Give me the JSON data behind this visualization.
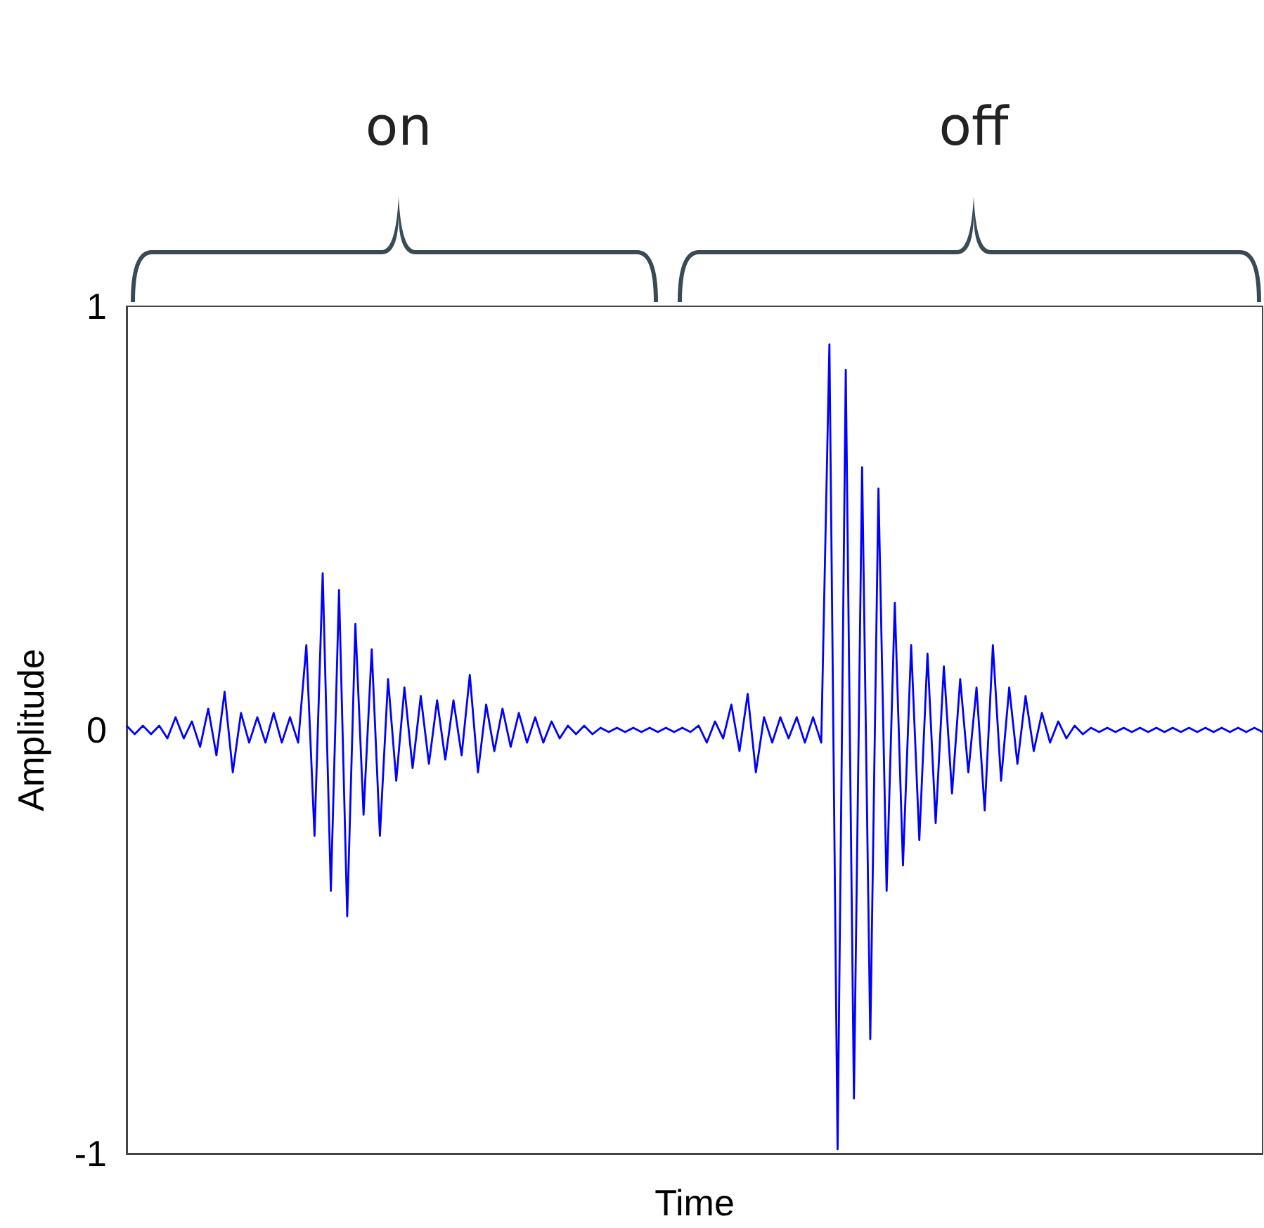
{
  "chart_data": {
    "type": "line",
    "xlabel": "Time",
    "ylabel": "Amplitude",
    "annotations": [
      "on",
      "off"
    ],
    "categories": [
      null,
      null,
      null,
      null,
      null,
      null,
      null,
      null,
      null,
      null,
      null,
      null,
      null,
      null,
      null,
      null,
      null,
      null,
      null,
      null,
      null,
      null,
      null,
      null,
      null,
      null,
      null,
      null,
      null,
      null,
      null,
      null,
      null,
      null,
      null,
      null,
      null,
      null,
      null,
      null,
      null,
      null,
      null,
      null,
      null,
      null,
      null,
      null,
      null,
      null,
      null,
      null,
      null,
      null,
      null,
      null,
      null,
      null,
      null,
      null,
      null,
      null,
      null,
      null,
      null,
      null,
      null,
      null,
      null,
      null,
      null,
      null,
      null,
      null,
      null,
      null,
      null,
      null,
      null,
      null,
      null,
      null,
      null,
      null,
      null,
      null,
      null,
      null,
      null,
      null,
      null,
      null,
      null,
      null,
      null,
      null,
      null,
      null,
      null,
      null,
      null,
      null,
      null,
      null,
      null,
      null,
      null,
      null,
      null,
      null,
      null,
      null,
      null,
      null,
      null,
      null,
      null,
      null,
      null,
      null,
      null,
      null,
      null,
      null,
      null,
      null,
      null,
      null,
      null,
      null,
      null,
      null,
      null,
      null,
      null,
      null,
      null,
      null,
      null,
      null
    ],
    "series": [
      {
        "color": "#0000ff",
        "values": [
          0.01,
          -0.01,
          0.01,
          -0.01,
          0.01,
          -0.02,
          0.03,
          -0.02,
          0.02,
          -0.04,
          0.05,
          -0.06,
          0.09,
          -0.1,
          0.04,
          -0.03,
          0.03,
          -0.03,
          0.04,
          -0.03,
          0.03,
          -0.03,
          0.2,
          -0.25,
          0.37,
          -0.38,
          0.33,
          -0.44,
          0.25,
          -0.2,
          0.19,
          -0.25,
          0.12,
          -0.12,
          0.1,
          -0.09,
          0.08,
          -0.08,
          0.07,
          -0.07,
          0.07,
          -0.06,
          0.13,
          -0.1,
          0.06,
          -0.05,
          0.05,
          -0.04,
          0.04,
          -0.03,
          0.03,
          -0.03,
          0.02,
          -0.02,
          0.01,
          -0.01,
          0.01,
          -0.01,
          0.005,
          -0.005,
          0.005,
          -0.005,
          0.005,
          -0.005,
          0.005,
          -0.005,
          0.005,
          -0.005,
          0.005,
          -0.005,
          0.01,
          -0.03,
          0.02,
          -0.02,
          0.06,
          -0.05,
          0.085,
          -0.1,
          0.03,
          -0.03,
          0.03,
          -0.02,
          0.03,
          -0.03,
          0.03,
          -0.03,
          0.91,
          -0.99,
          0.85,
          -0.87,
          0.62,
          -0.73,
          0.57,
          -0.38,
          0.3,
          -0.32,
          0.2,
          -0.26,
          0.18,
          -0.22,
          0.15,
          -0.15,
          0.12,
          -0.1,
          0.1,
          -0.19,
          0.2,
          -0.12,
          0.1,
          -0.08,
          0.08,
          -0.05,
          0.04,
          -0.03,
          0.02,
          -0.02,
          0.01,
          -0.01,
          0.005,
          -0.005,
          0.005,
          -0.005,
          0.005,
          -0.005,
          0.005,
          -0.005,
          0.005,
          -0.005,
          0.005,
          -0.005,
          0.005,
          -0.005,
          0.005,
          -0.005,
          0.005,
          -0.005,
          0.005,
          -0.005,
          0.005,
          -0.005
        ]
      }
    ],
    "ylim": [
      -1,
      1
    ],
    "yticks": [
      -1,
      0,
      1
    ],
    "tick_labels": "y",
    "line_style": "solid"
  }
}
